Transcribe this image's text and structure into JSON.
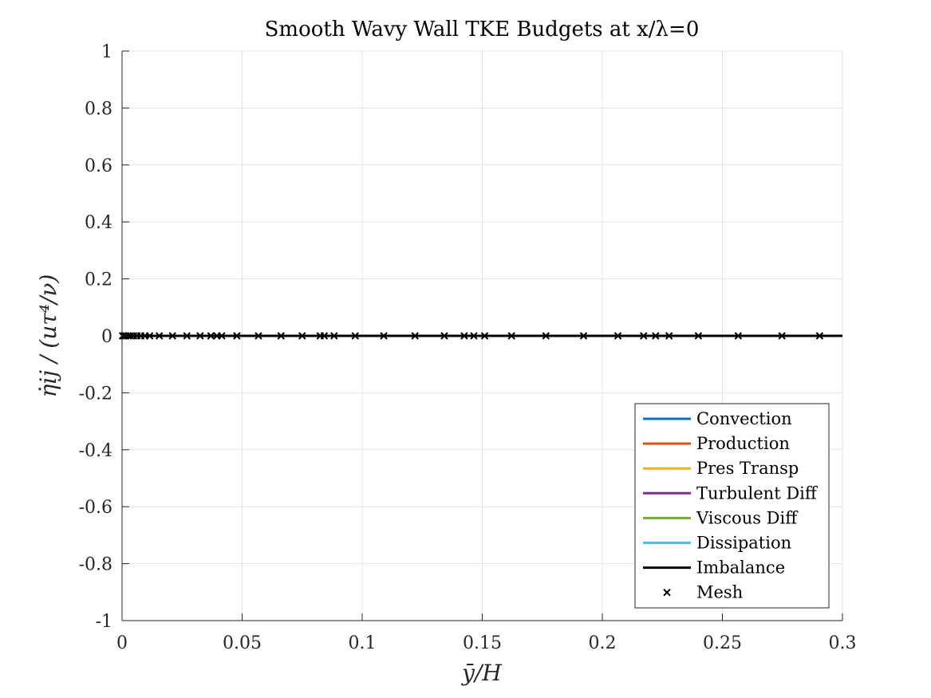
{
  "chart_data": {
    "type": "line",
    "title": "Smooth Wavy Wall TKE Budgets at x/λ=0",
    "xlabel": "ȳ/H",
    "ylabel": "η̇ij / (uτ⁴/ν)",
    "xlim": [
      0,
      0.3
    ],
    "ylim": [
      -1,
      1
    ],
    "xticks": [
      0,
      0.05,
      0.1,
      0.15,
      0.2,
      0.25,
      0.3
    ],
    "xtick_labels": [
      "0",
      "0.05",
      "0.1",
      "0.15",
      "0.2",
      "0.25",
      "0.3"
    ],
    "yticks": [
      1,
      0.8,
      0.6,
      0.4,
      0.2,
      0,
      -0.2,
      -0.4,
      -0.6,
      -0.8,
      -1
    ],
    "ytick_labels": [
      "1",
      "0.8",
      "0.6",
      "0.4",
      "0.2",
      "0",
      "-0.2",
      "-0.4",
      "-0.6",
      "-0.8",
      "-1"
    ],
    "grid": true,
    "legend_position": "bottom-right",
    "series": [
      {
        "name": "Convection",
        "color": "#0072BD",
        "x": [
          0,
          0.3
        ],
        "y": [
          0,
          0
        ]
      },
      {
        "name": "Production",
        "color": "#D95319",
        "x": [
          0,
          0.3
        ],
        "y": [
          0,
          0
        ]
      },
      {
        "name": "Pres Transp",
        "color": "#EDB120",
        "x": [
          0,
          0.3
        ],
        "y": [
          0,
          0
        ]
      },
      {
        "name": "Turbulent Diff",
        "color": "#7E2F8E",
        "x": [
          0,
          0.3
        ],
        "y": [
          0,
          0
        ]
      },
      {
        "name": "Viscous Diff",
        "color": "#77AC30",
        "x": [
          0,
          0.3
        ],
        "y": [
          0,
          0
        ]
      },
      {
        "name": "Dissipation",
        "color": "#4DBEEE",
        "x": [
          0,
          0.3
        ],
        "y": [
          0,
          0
        ]
      },
      {
        "name": "Imbalance",
        "color": "#000000",
        "x": [
          0,
          0.3
        ],
        "y": [
          0,
          0
        ]
      }
    ],
    "mesh": {
      "name": "Mesh",
      "color": "#000000",
      "x": [
        0.0002,
        0.0008,
        0.0015,
        0.0025,
        0.0035,
        0.0048,
        0.0062,
        0.0078,
        0.0095,
        0.0115,
        0.0155,
        0.021,
        0.027,
        0.0325,
        0.037,
        0.0395,
        0.0415,
        0.0478,
        0.0568,
        0.0662,
        0.075,
        0.0825,
        0.0842,
        0.0883,
        0.0971,
        0.109,
        0.122,
        0.1342,
        0.1425,
        0.1465,
        0.151,
        0.1622,
        0.1765,
        0.1922,
        0.2065,
        0.2172,
        0.2222,
        0.2278,
        0.24,
        0.2566,
        0.2748,
        0.2905
      ],
      "y_value": 0
    }
  }
}
